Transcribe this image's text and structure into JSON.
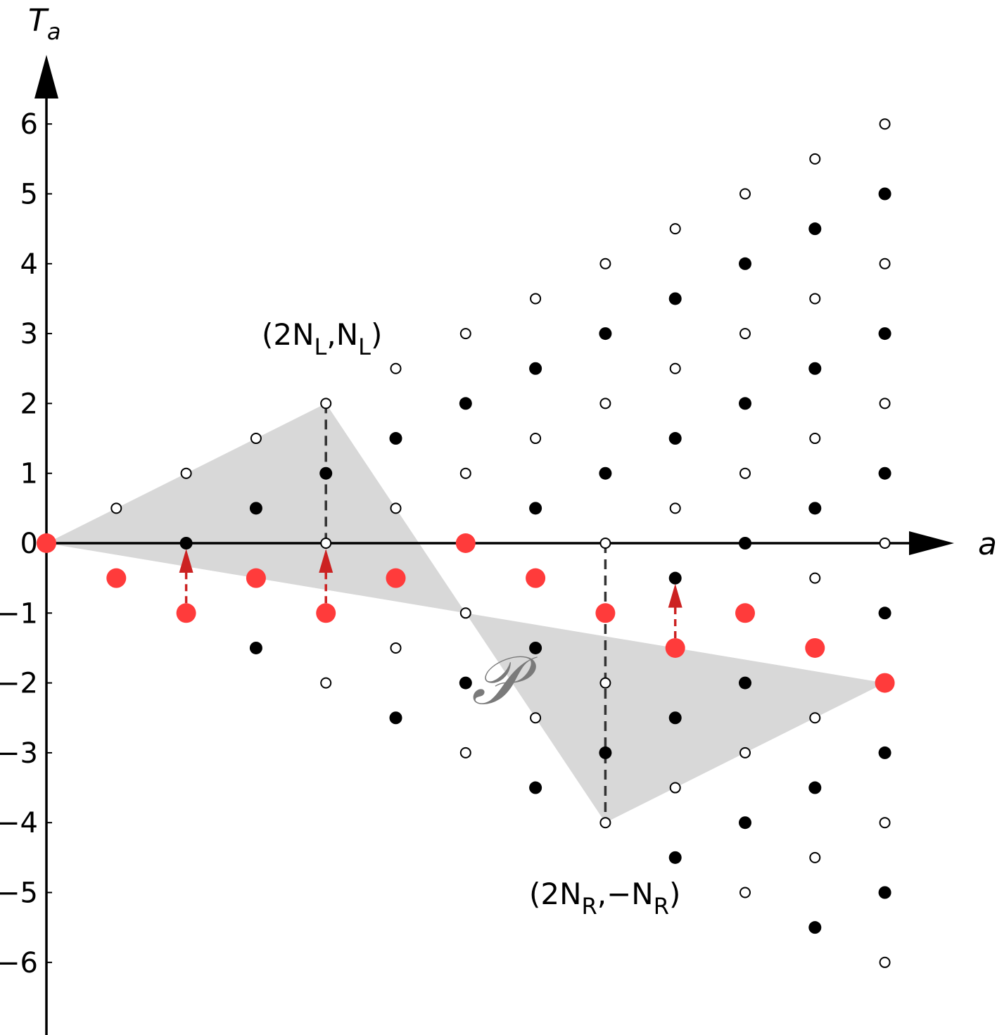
{
  "chart_data": {
    "type": "scatter",
    "xlabel": "a",
    "ylabel": "T_a",
    "ylim": [
      -7,
      7
    ],
    "xlim": [
      0,
      12
    ],
    "yticks": [
      "6",
      "5",
      "4",
      "3",
      "2",
      "1",
      "0",
      "−1",
      "−2",
      "−3",
      "−4",
      "−5",
      "−6"
    ],
    "ytick_values": [
      6,
      5,
      4,
      3,
      2,
      1,
      0,
      -1,
      -2,
      -3,
      -4,
      -5,
      -6
    ],
    "region": {
      "label": "𝒫",
      "vertices": [
        [
          0,
          0
        ],
        [
          4,
          2
        ],
        [
          8,
          -4
        ],
        [
          12,
          -2
        ]
      ],
      "color": "#d8d8d8"
    },
    "annotations": [
      {
        "base": "(2N",
        "sub1": "L",
        "mid": ",N",
        "sub2": "L",
        "end": ")",
        "at": [
          4,
          2
        ]
      },
      {
        "base": "(2N",
        "sub1": "R",
        "mid": ",−N",
        "sub2": "R",
        "end": ")",
        "at": [
          8,
          -4
        ]
      }
    ],
    "dashed_lines": [
      {
        "x": 4,
        "from": 2,
        "to": 0
      },
      {
        "x": 8,
        "from": 0,
        "to": -4
      }
    ],
    "series": [
      {
        "marker": "red-filled",
        "color": "#ff3b3b",
        "points": [
          [
            0,
            0
          ],
          [
            1,
            -0.5
          ],
          [
            2,
            -1
          ],
          [
            3,
            -0.5
          ],
          [
            4,
            -1
          ],
          [
            5,
            -0.5
          ],
          [
            6,
            0
          ],
          [
            7,
            -0.5
          ],
          [
            8,
            -1
          ],
          [
            9,
            -1.5
          ],
          [
            10,
            -1
          ],
          [
            11,
            -1.5
          ],
          [
            12,
            -2
          ]
        ]
      },
      {
        "marker": "black-filled",
        "color": "#000000",
        "points": [
          [
            2,
            0
          ],
          [
            3,
            0.5
          ],
          [
            3,
            -1.5
          ],
          [
            4,
            1
          ],
          [
            5,
            1.5
          ],
          [
            5,
            -2.5
          ],
          [
            6,
            2
          ],
          [
            6,
            -2
          ],
          [
            7,
            2.5
          ],
          [
            7,
            0.5
          ],
          [
            7,
            -1.5
          ],
          [
            7,
            -3.5
          ],
          [
            8,
            3
          ],
          [
            8,
            1
          ],
          [
            8,
            -3
          ],
          [
            9,
            3.5
          ],
          [
            9,
            1.5
          ],
          [
            9,
            -0.5
          ],
          [
            9,
            -2.5
          ],
          [
            9,
            -4.5
          ],
          [
            10,
            4
          ],
          [
            10,
            2
          ],
          [
            10,
            0
          ],
          [
            10,
            -2
          ],
          [
            10,
            -4
          ],
          [
            11,
            4.5
          ],
          [
            11,
            2.5
          ],
          [
            11,
            0.5
          ],
          [
            11,
            -3.5
          ],
          [
            11,
            -5.5
          ],
          [
            12,
            5
          ],
          [
            12,
            3
          ],
          [
            12,
            1
          ],
          [
            12,
            -1
          ],
          [
            12,
            -3
          ],
          [
            12,
            -5
          ]
        ]
      },
      {
        "marker": "hollow",
        "color": "#000000",
        "points": [
          [
            1,
            0.5
          ],
          [
            2,
            1
          ],
          [
            3,
            1.5
          ],
          [
            4,
            2
          ],
          [
            4,
            0
          ],
          [
            4,
            -2
          ],
          [
            5,
            2.5
          ],
          [
            5,
            0.5
          ],
          [
            5,
            -1.5
          ],
          [
            6,
            3
          ],
          [
            6,
            1
          ],
          [
            6,
            -1
          ],
          [
            6,
            -3
          ],
          [
            7,
            3.5
          ],
          [
            7,
            1.5
          ],
          [
            7,
            -2.5
          ],
          [
            8,
            4
          ],
          [
            8,
            2
          ],
          [
            8,
            0
          ],
          [
            8,
            -2
          ],
          [
            8,
            -4
          ],
          [
            9,
            4.5
          ],
          [
            9,
            2.5
          ],
          [
            9,
            0.5
          ],
          [
            9,
            -3.5
          ],
          [
            10,
            5
          ],
          [
            10,
            3
          ],
          [
            10,
            1
          ],
          [
            10,
            -3
          ],
          [
            10,
            -5
          ],
          [
            11,
            5.5
          ],
          [
            11,
            3.5
          ],
          [
            11,
            1.5
          ],
          [
            11,
            -0.5
          ],
          [
            11,
            -2.5
          ],
          [
            11,
            -4.5
          ],
          [
            12,
            6
          ],
          [
            12,
            4
          ],
          [
            12,
            2
          ],
          [
            12,
            0
          ],
          [
            12,
            -4
          ],
          [
            12,
            -6
          ]
        ]
      }
    ],
    "arrows": [
      {
        "x": 2,
        "from": -1,
        "to": 0,
        "color": "#cc2222"
      },
      {
        "x": 4,
        "from": -1,
        "to": 0,
        "color": "#cc2222"
      },
      {
        "x": 9,
        "from": -1.5,
        "to": -0.5,
        "color": "#cc2222"
      }
    ]
  }
}
